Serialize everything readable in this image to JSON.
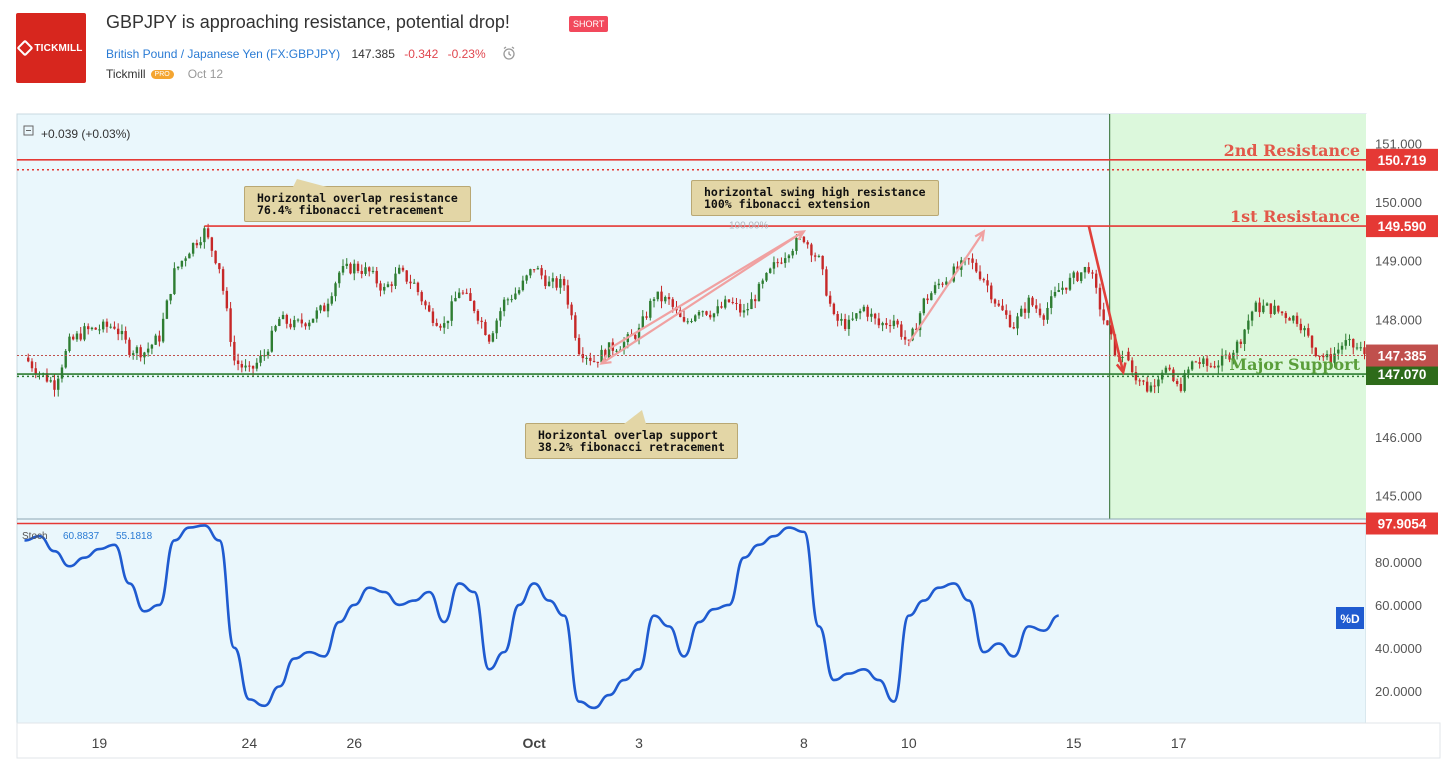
{
  "header": {
    "logo_text": "TICKMILL",
    "title": "GBPJPY is approaching resistance, potential drop!",
    "badge": "SHORT",
    "symbol_name": "British Pound / Japanese Yen",
    "symbol_code": "(FX:GBPJPY)",
    "price": "147.385",
    "change": "-0.342",
    "change_pct": "-0.23%",
    "author": "Tickmill",
    "author_badge": "PRO",
    "date": "Oct 12"
  },
  "chart_data": [
    {
      "type": "candlestick",
      "title": "",
      "info": "+0.039 (+0.03%)",
      "ylim": [
        144.6,
        151.5
      ],
      "yticks": [
        "151.000",
        "150.000",
        "149.000",
        "148.000",
        "147.000",
        "146.000",
        "145.000"
      ],
      "ytick_values": [
        151,
        150,
        149,
        148,
        147,
        146,
        145
      ],
      "xticks": [
        "19",
        "24",
        "26",
        "Oct",
        "3",
        "8",
        "10",
        "15",
        "17"
      ],
      "xtick_index": [
        3,
        13,
        20,
        32,
        39,
        50,
        57,
        68,
        75
      ],
      "x_index_range": [
        -2.5,
        87.5
      ],
      "grid": false,
      "price_path": [
        [
          -2,
          147.35
        ],
        [
          -1,
          147.1
        ],
        [
          0,
          146.9
        ],
        [
          1,
          147.6
        ],
        [
          2,
          147.8
        ],
        [
          4,
          147.9
        ],
        [
          5,
          147.5
        ],
        [
          6,
          147.45
        ],
        [
          7,
          147.7
        ],
        [
          8,
          148.8
        ],
        [
          9,
          149.2
        ],
        [
          10,
          149.5
        ],
        [
          11,
          148.9
        ],
        [
          12,
          147.3
        ],
        [
          13,
          147.1
        ],
        [
          14,
          147.4
        ],
        [
          15,
          148.0
        ],
        [
          16,
          147.9
        ],
        [
          17,
          148.0
        ],
        [
          18,
          148.2
        ],
        [
          19,
          148.8
        ],
        [
          20,
          148.9
        ],
        [
          21,
          148.8
        ],
        [
          22,
          148.5
        ],
        [
          23,
          148.8
        ],
        [
          24,
          148.6
        ],
        [
          25,
          148.1
        ],
        [
          26,
          147.9
        ],
        [
          27,
          148.5
        ],
        [
          28,
          148.2
        ],
        [
          29,
          147.7
        ],
        [
          30,
          148.3
        ],
        [
          31,
          148.5
        ],
        [
          32,
          148.9
        ],
        [
          33,
          148.6
        ],
        [
          34,
          148.6
        ],
        [
          35,
          147.5
        ],
        [
          36,
          147.3
        ],
        [
          37,
          147.5
        ],
        [
          38,
          147.6
        ],
        [
          39,
          147.8
        ],
        [
          40,
          148.4
        ],
        [
          41,
          148.3
        ],
        [
          42,
          147.9
        ],
        [
          43,
          148.2
        ],
        [
          44,
          148.1
        ],
        [
          45,
          148.3
        ],
        [
          46,
          148.1
        ],
        [
          47,
          148.5
        ],
        [
          48,
          148.9
        ],
        [
          49,
          149.2
        ],
        [
          50,
          149.4
        ],
        [
          51,
          149.0
        ],
        [
          52,
          148.0
        ],
        [
          53,
          147.9
        ],
        [
          54,
          148.2
        ],
        [
          55,
          147.9
        ],
        [
          56,
          148.0
        ],
        [
          57,
          147.55
        ],
        [
          58,
          148.3
        ],
        [
          59,
          148.6
        ],
        [
          60,
          148.8
        ],
        [
          61,
          149.0
        ],
        [
          62,
          148.7
        ],
        [
          63,
          148.2
        ],
        [
          64,
          147.9
        ],
        [
          65,
          148.3
        ],
        [
          66,
          148.1
        ],
        [
          67,
          148.5
        ],
        [
          68,
          148.7
        ],
        [
          69,
          148.9
        ],
        [
          70,
          148.0
        ],
        [
          71,
          147.3
        ],
        [
          71.4,
          147.45
        ]
      ],
      "forecast_path": [
        [
          71.4,
          147.45
        ],
        [
          72,
          147.1
        ],
        [
          73,
          146.8
        ],
        [
          74,
          147.2
        ],
        [
          75,
          146.8
        ],
        [
          76,
          147.3
        ],
        [
          77,
          147.2
        ],
        [
          78,
          147.3
        ],
        [
          79,
          147.6
        ],
        [
          80,
          148.2
        ],
        [
          81,
          148.2
        ],
        [
          82,
          148.1
        ],
        [
          83,
          148.0
        ],
        [
          84,
          147.5
        ],
        [
          85,
          147.3
        ],
        [
          86,
          147.6
        ],
        [
          87,
          147.5
        ],
        [
          87.5,
          147.4
        ]
      ],
      "levels": [
        {
          "name": "2nd Resistance",
          "label": "150.719",
          "value": 150.719,
          "color": "#e53935",
          "dotted": 150.55
        },
        {
          "name": "1st Resistance",
          "label": "149.590",
          "value": 149.59,
          "color": "#e53935"
        },
        {
          "name": "Major Support",
          "label": "147.070",
          "value": 147.07,
          "color": "#2e7d32",
          "dotted": 147.03
        },
        {
          "name": "",
          "label": "147.385",
          "value": 147.385,
          "color": "#c0504d"
        }
      ],
      "annotations": [
        {
          "text": "Horizontal overlap resistance\n76.4% fibonacci retracement"
        },
        {
          "text": "horizontal swing high resistance\n100% fibonacci extension"
        },
        {
          "text": "Horizontal overlap support\n38.2% fibonacci retracement"
        }
      ],
      "fib_label": "100.00%",
      "colors": {
        "up": "#2e7d32",
        "down": "#c62828",
        "bg": "#eaf7fc",
        "forecast_bg": "#dcf8dc",
        "arrow": "#f0a1a1",
        "drop_arrow": "#e0403a"
      }
    },
    {
      "type": "line",
      "series": [
        {
          "name": "%D",
          "color": "#1f5bd0",
          "values": [
            [
              -2,
              90
            ],
            [
              -1,
              92
            ],
            [
              0,
              85
            ],
            [
              1,
              78
            ],
            [
              2,
              82
            ],
            [
              3,
              86
            ],
            [
              4,
              88
            ],
            [
              5,
              70
            ],
            [
              6,
              57
            ],
            [
              7,
              60
            ],
            [
              8,
              90
            ],
            [
              9,
              96
            ],
            [
              10,
              97
            ],
            [
              11,
              90
            ],
            [
              12,
              40
            ],
            [
              13,
              16
            ],
            [
              14,
              13
            ],
            [
              15,
              22
            ],
            [
              16,
              35
            ],
            [
              17,
              38
            ],
            [
              18,
              36
            ],
            [
              19,
              52
            ],
            [
              20,
              60
            ],
            [
              21,
              68
            ],
            [
              22,
              66
            ],
            [
              23,
              60
            ],
            [
              24,
              62
            ],
            [
              25,
              66
            ],
            [
              26,
              52
            ],
            [
              27,
              70
            ],
            [
              28,
              66
            ],
            [
              29,
              30
            ],
            [
              30,
              38
            ],
            [
              31,
              60
            ],
            [
              32,
              70
            ],
            [
              33,
              62
            ],
            [
              34,
              55
            ],
            [
              35,
              15
            ],
            [
              36,
              12
            ],
            [
              37,
              18
            ],
            [
              38,
              25
            ],
            [
              39,
              30
            ],
            [
              40,
              55
            ],
            [
              41,
              50
            ],
            [
              42,
              36
            ],
            [
              43,
              52
            ],
            [
              44,
              58
            ],
            [
              45,
              60
            ],
            [
              46,
              82
            ],
            [
              47,
              88
            ],
            [
              48,
              92
            ],
            [
              49,
              96
            ],
            [
              50,
              94
            ],
            [
              51,
              50
            ],
            [
              52,
              25
            ],
            [
              53,
              28
            ],
            [
              54,
              30
            ],
            [
              55,
              25
            ],
            [
              56,
              15
            ],
            [
              57,
              55
            ],
            [
              58,
              62
            ],
            [
              59,
              68
            ],
            [
              60,
              70
            ],
            [
              61,
              62
            ],
            [
              62,
              38
            ],
            [
              63,
              42
            ],
            [
              64,
              36
            ],
            [
              65,
              50
            ],
            [
              66,
              48
            ],
            [
              67,
              55
            ]
          ]
        }
      ],
      "label": "Stoch",
      "value1": "60.8837",
      "value2": "55.1818",
      "ylim": [
        5,
        100
      ],
      "yticks": [
        "80.0000",
        "60.0000",
        "40.0000",
        "20.0000"
      ],
      "ytick_values": [
        80,
        60,
        40,
        20
      ],
      "level": {
        "label": "97.9054",
        "value": 97.9054,
        "color": "#e53935"
      },
      "tag": "%D"
    }
  ]
}
